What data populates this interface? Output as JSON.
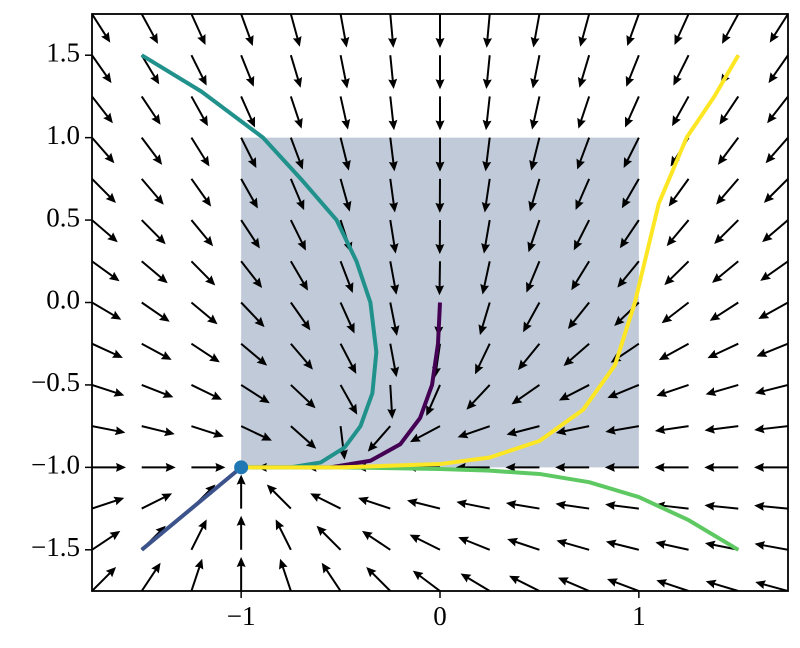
{
  "chart_data": {
    "type": "quiver",
    "xlim": [
      -1.75,
      1.75
    ],
    "ylim": [
      -1.75,
      1.75
    ],
    "xticks": [
      {
        "value": -1,
        "label": "−1"
      },
      0,
      1
    ],
    "yticks": [
      {
        "value": -1.5,
        "label": "−1.5"
      },
      {
        "value": -1,
        "label": "−1.0"
      },
      {
        "value": -0.5,
        "label": "−0.5"
      },
      {
        "value": 0,
        "label": "0.0"
      },
      0.5,
      {
        "value": 1,
        "label": "1.0"
      },
      1.5
    ],
    "shaded_region": {
      "x": [
        -1,
        1
      ],
      "y": [
        -1,
        1
      ],
      "color": "#c0cad8"
    },
    "quiver": {
      "color": "#000000",
      "xgrid": [
        -1.75,
        -1.5,
        -1.25,
        -1,
        -0.75,
        -0.5,
        -0.25,
        0,
        0.25,
        0.5,
        0.75,
        1,
        1.25,
        1.5,
        1.75
      ],
      "ygrid": [
        -1.75,
        -1.5,
        -1.25,
        -1,
        -0.75,
        -0.5,
        -0.25,
        0,
        0.25,
        0.5,
        0.75,
        1,
        1.25,
        1.5,
        1.75
      ],
      "u": [
        [
          0.75,
          0.5,
          0.25,
          0,
          -0.25,
          -0.5,
          -0.75,
          -1,
          -1.25,
          -1.5,
          -1.75,
          -2,
          -2.25,
          -2.5,
          -2.75
        ],
        [
          0.75,
          0.5,
          0.25,
          0,
          -0.25,
          -0.5,
          -0.75,
          -1,
          -1.25,
          -1.5,
          -1.75,
          -2,
          -2.25,
          -2.5,
          -2.75
        ],
        [
          0.75,
          0.5,
          0.25,
          0,
          -0.25,
          -0.5,
          -0.75,
          -1,
          -1.25,
          -1.5,
          -1.75,
          -2,
          -2.25,
          -2.5,
          -2.75
        ],
        [
          0.75,
          0.5,
          0.25,
          0,
          -0.25,
          -0.5,
          -0.75,
          -1,
          -1.25,
          -1.5,
          -1.75,
          -2,
          -2.25,
          -2.5,
          -2.75
        ],
        [
          1.28,
          1.03,
          0.78,
          0.53,
          0.28,
          0.03,
          -0.22,
          -0.47,
          -0.72,
          -0.97,
          -1.22,
          -1.47,
          -1.72,
          -1.97,
          -2.22
        ],
        [
          1.53,
          1.28,
          1.03,
          0.78,
          0.53,
          0.28,
          0.03,
          -0.22,
          -0.47,
          -0.72,
          -0.97,
          -1.22,
          -1.47,
          -1.72,
          -1.97
        ],
        [
          1.64,
          1.39,
          1.14,
          0.89,
          0.64,
          0.39,
          0.14,
          -0.11,
          -0.36,
          -0.61,
          -0.86,
          -1.11,
          -1.36,
          -1.61,
          -1.86
        ],
        [
          1.7,
          1.45,
          1.2,
          0.95,
          0.7,
          0.45,
          0.2,
          -0.05,
          -0.3,
          -0.55,
          -0.8,
          -1.05,
          -1.3,
          -1.55,
          -1.8
        ],
        [
          1.73,
          1.48,
          1.23,
          0.98,
          0.73,
          0.48,
          0.23,
          -0.02,
          -0.27,
          -0.52,
          -0.77,
          -1.02,
          -1.27,
          -1.52,
          -1.77
        ],
        [
          1.74,
          1.49,
          1.24,
          0.99,
          0.74,
          0.49,
          0.24,
          -0.01,
          -0.26,
          -0.51,
          -0.76,
          -1.01,
          -1.26,
          -1.51,
          -1.76
        ],
        [
          1.74,
          1.49,
          1.24,
          0.99,
          0.74,
          0.49,
          0.24,
          -0.01,
          -0.26,
          -0.51,
          -0.76,
          -1.01,
          -1.26,
          -1.51,
          -1.76
        ],
        [
          1.75,
          1.5,
          1.25,
          1,
          0.75,
          0.5,
          0.25,
          0,
          -0.25,
          -0.5,
          -0.75,
          -1,
          -1.25,
          -1.5,
          -1.75
        ],
        [
          1.75,
          1.5,
          1.25,
          1,
          0.75,
          0.5,
          0.25,
          0,
          -0.25,
          -0.5,
          -0.75,
          -1,
          -1.25,
          -1.5,
          -1.75
        ],
        [
          1.75,
          1.5,
          1.25,
          1,
          0.75,
          0.5,
          0.25,
          0,
          -0.25,
          -0.5,
          -0.75,
          -1,
          -1.25,
          -1.5,
          -1.75
        ],
        [
          1.75,
          1.5,
          1.25,
          1,
          0.75,
          0.5,
          0.25,
          0,
          -0.25,
          -0.5,
          -0.75,
          -1,
          -1.25,
          -1.5,
          -1.75
        ]
      ],
      "v": [
        [
          0.75,
          0.75,
          0.75,
          0.75,
          0.75,
          0.75,
          0.75,
          0.75,
          0.75,
          0.75,
          0.75,
          0.75,
          0.75,
          0.75,
          0.75
        ],
        [
          0.5,
          0.5,
          0.5,
          0.5,
          0.5,
          0.5,
          0.5,
          0.5,
          0.5,
          0.5,
          0.5,
          0.5,
          0.5,
          0.5,
          0.5
        ],
        [
          0.25,
          0.25,
          0.25,
          0.25,
          0.25,
          0.25,
          0.25,
          0.25,
          0.25,
          0.25,
          0.25,
          0.25,
          0.25,
          0.25,
          0.25
        ],
        [
          0,
          0,
          0,
          0,
          0,
          0,
          0,
          0,
          0,
          0,
          0,
          0,
          0,
          0,
          0
        ],
        [
          -0.25,
          -0.25,
          -0.25,
          -0.25,
          -0.25,
          -0.25,
          -0.25,
          -0.25,
          -0.25,
          -0.25,
          -0.25,
          -0.25,
          -0.25,
          -0.25,
          -0.25
        ],
        [
          -0.5,
          -0.5,
          -0.5,
          -0.5,
          -0.5,
          -0.5,
          -0.5,
          -0.5,
          -0.5,
          -0.5,
          -0.5,
          -0.5,
          -0.5,
          -0.5,
          -0.5
        ],
        [
          -0.75,
          -0.75,
          -0.75,
          -0.75,
          -0.75,
          -0.75,
          -0.75,
          -0.75,
          -0.75,
          -0.75,
          -0.75,
          -0.75,
          -0.75,
          -0.75,
          -0.75
        ],
        [
          -1,
          -1,
          -1,
          -1,
          -1,
          -1,
          -1,
          -1,
          -1,
          -1,
          -1,
          -1,
          -1,
          -1,
          -1
        ],
        [
          -1.25,
          -1.25,
          -1.25,
          -1.25,
          -1.25,
          -1.25,
          -1.25,
          -1.25,
          -1.25,
          -1.25,
          -1.25,
          -1.25,
          -1.25,
          -1.25,
          -1.25
        ],
        [
          -1.5,
          -1.5,
          -1.5,
          -1.5,
          -1.5,
          -1.5,
          -1.5,
          -1.5,
          -1.5,
          -1.5,
          -1.5,
          -1.5,
          -1.5,
          -1.5,
          -1.5
        ],
        [
          -1.75,
          -1.75,
          -1.75,
          -1.75,
          -1.75,
          -1.75,
          -1.75,
          -1.75,
          -1.75,
          -1.75,
          -1.75,
          -1.75,
          -1.75,
          -1.75,
          -1.75
        ],
        [
          -2,
          -2,
          -2,
          -2,
          -2,
          -2,
          -2,
          -2,
          -2,
          -2,
          -2,
          -2,
          -2,
          -2,
          -2
        ],
        [
          -2.25,
          -2.25,
          -2.25,
          -2.25,
          -2.25,
          -2.25,
          -2.25,
          -2.25,
          -2.25,
          -2.25,
          -2.25,
          -2.25,
          -2.25,
          -2.25,
          -2.25
        ],
        [
          -2.5,
          -2.5,
          -2.5,
          -2.5,
          -2.5,
          -2.5,
          -2.5,
          -2.5,
          -2.5,
          -2.5,
          -2.5,
          -2.5,
          -2.5,
          -2.5,
          -2.5
        ],
        [
          -2.75,
          -2.75,
          -2.75,
          -2.75,
          -2.75,
          -2.75,
          -2.75,
          -2.75,
          -2.75,
          -2.75,
          -2.75,
          -2.75,
          -2.75,
          -2.75,
          -2.75
        ]
      ]
    },
    "series": [
      {
        "color": "#440154",
        "x": [
          0,
          -0.01,
          -0.04,
          -0.1,
          -0.2,
          -0.35,
          -0.55,
          -1
        ],
        "y": [
          0,
          -0.25,
          -0.5,
          -0.7,
          -0.86,
          -0.96,
          -1,
          -1
        ]
      },
      {
        "color": "#3b528b",
        "x": [
          -1.5,
          -1
        ],
        "y": [
          -1.5,
          -1
        ]
      },
      {
        "color": "#21918c",
        "x": [
          -1.5,
          -1.2,
          -0.89,
          -0.7,
          -0.52,
          -0.42,
          -0.35,
          -0.32,
          -0.34,
          -0.4,
          -0.48,
          -0.6,
          -0.75,
          -1
        ],
        "y": [
          1.5,
          1.28,
          1,
          0.75,
          0.5,
          0.25,
          0,
          -0.3,
          -0.55,
          -0.75,
          -0.88,
          -0.97,
          -1,
          -1
        ]
      },
      {
        "color": "#5ec962",
        "x": [
          1.5,
          1.25,
          1,
          0.75,
          0.5,
          0.25,
          0,
          -0.5,
          -1
        ],
        "y": [
          -1.5,
          -1.32,
          -1.18,
          -1.09,
          -1.04,
          -1.02,
          -1.01,
          -1,
          -1
        ]
      },
      {
        "color": "#fde725",
        "x": [
          1.5,
          1.38,
          1.24,
          1.1,
          0.98,
          0.88,
          0.72,
          0.5,
          0.25,
          0,
          -0.5,
          -1
        ],
        "y": [
          1.5,
          1.25,
          1,
          0.6,
          0,
          -0.38,
          -0.65,
          -0.84,
          -0.94,
          -0.98,
          -1,
          -1
        ]
      }
    ],
    "point": {
      "x": -1,
      "y": -1,
      "color": "#1f77b4"
    }
  }
}
